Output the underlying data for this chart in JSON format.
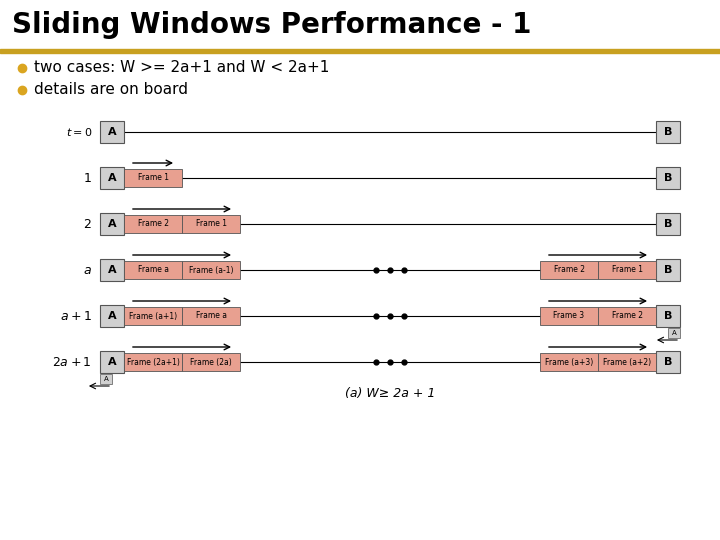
{
  "title": "Sliding Windows Performance - 1",
  "title_color": "#000000",
  "title_bg": "#C8A020",
  "bullet_color": "#DAA520",
  "bullet_points": [
    "two cases: W >= 2a+1 and W < 2a+1",
    "details are on board"
  ],
  "bg_color": "#FFFFFF",
  "frame_fill": "#E8A090",
  "frame_edge": "#555555",
  "box_fill": "#D0D0D0",
  "box_edge": "#555555",
  "line_color": "#000000",
  "rows": [
    {
      "label": "t=0",
      "frames_left": [],
      "frames_right": [],
      "has_dots": false,
      "arrow_left": false,
      "arrow_right": false,
      "ack_left": false,
      "ack_right": false
    },
    {
      "label": "1",
      "frames_left": [
        "Frame 1"
      ],
      "frames_right": [],
      "has_dots": false,
      "arrow_left": true,
      "arrow_right": false,
      "ack_left": false,
      "ack_right": false
    },
    {
      "label": "2",
      "frames_left": [
        "Frame 2",
        "Frame 1"
      ],
      "frames_right": [],
      "has_dots": false,
      "arrow_left": true,
      "arrow_right": false,
      "ack_left": false,
      "ack_right": false
    },
    {
      "label": "a",
      "frames_left": [
        "Frame a",
        "Frame (a-1)"
      ],
      "frames_right": [
        "Frame 2",
        "Frame 1"
      ],
      "has_dots": true,
      "arrow_left": true,
      "arrow_right": true,
      "ack_left": false,
      "ack_right": false
    },
    {
      "label": "a+1",
      "frames_left": [
        "Frame (a+1)",
        "Frame a"
      ],
      "frames_right": [
        "Frame 3",
        "Frame 2"
      ],
      "has_dots": true,
      "arrow_left": true,
      "arrow_right": true,
      "ack_left": false,
      "ack_right": true
    },
    {
      "label": "2a+1",
      "frames_left": [
        "Frame (2a+1)",
        "Frame (2a)"
      ],
      "frames_right": [
        "Frame (a+3)",
        "Frame (a+2)"
      ],
      "has_dots": true,
      "arrow_left": true,
      "arrow_right": true,
      "ack_left": true,
      "ack_right": false
    }
  ],
  "caption": "(a) W≥ 2a + 1",
  "figw": 7.2,
  "figh": 5.4,
  "dpi": 100
}
